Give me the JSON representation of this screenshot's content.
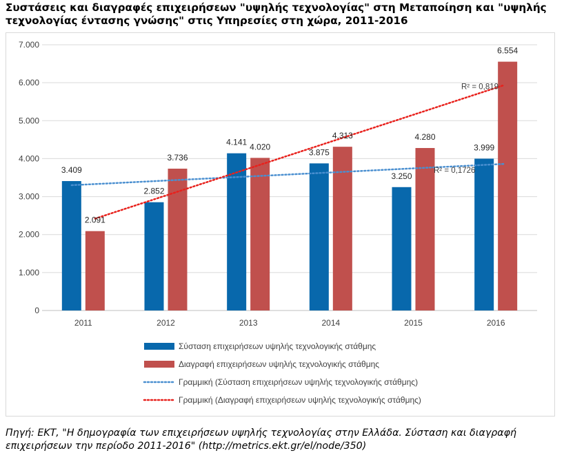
{
  "title": "Συστάσεις και διαγραφές επιχειρήσεων \"υψηλής τεχνολογίας\" στη Μεταποίηση και \"υψηλής τεχνολογίας έντασης γνώσης\" στις Υπηρεσίες στη χώρα, 2011-2016",
  "source": "Πηγή: ΕΚΤ, \"Η δημογραφία των επιχειρήσεων υψηλής τεχνολογίας στην Ελλάδα. Σύσταση και διαγραφή επιχειρήσεων την περίοδο 2011-2016\" (http://metrics.ekt.gr/el/node/350)",
  "chart_data": {
    "type": "bar",
    "categories": [
      "2011",
      "2012",
      "2013",
      "2014",
      "2015",
      "2016"
    ],
    "ylim": [
      0,
      7000
    ],
    "yticks": [
      0,
      1000,
      2000,
      3000,
      4000,
      5000,
      6000,
      7000
    ],
    "ytick_labels": [
      "0",
      "1.000",
      "2.000",
      "3.000",
      "4.000",
      "5.000",
      "6.000",
      "7.000"
    ],
    "grid": true,
    "legend_position": "bottom",
    "series": [
      {
        "name": "Σύσταση επιχειρήσεων υψηλής τεχνολογικής στάθμης",
        "values": [
          3409,
          2852,
          4141,
          3875,
          3250,
          3999
        ],
        "labels": [
          "3.409",
          "2.852",
          "4.141",
          "3.875",
          "3.250",
          "3.999"
        ],
        "color": "#0868ac"
      },
      {
        "name": "Διαγραφή επιχειρήσεων υψηλής τεχνολογικής στάθμης",
        "values": [
          2091,
          3736,
          4020,
          4313,
          4280,
          6554
        ],
        "labels": [
          "2.091",
          "3.736",
          "4.020",
          "4.313",
          "4.280",
          "6.554"
        ],
        "color": "#c0504d"
      }
    ],
    "trendlines": [
      {
        "name": "Γραμμική (Σύσταση επιχειρήσεων υψηλής τεχνολογικής στάθμης)",
        "color": "#4a8fd0",
        "r2_label": "R² = 0,1726",
        "start": 3300,
        "end": 3860
      },
      {
        "name": "Γραμμική (Διαγραφή επιχειρήσεων υψηλής τεχνολογικής στάθμης)",
        "color": "#e8211c",
        "r2_label": "R² = 0,819",
        "start": 2420,
        "end": 5930
      }
    ]
  }
}
